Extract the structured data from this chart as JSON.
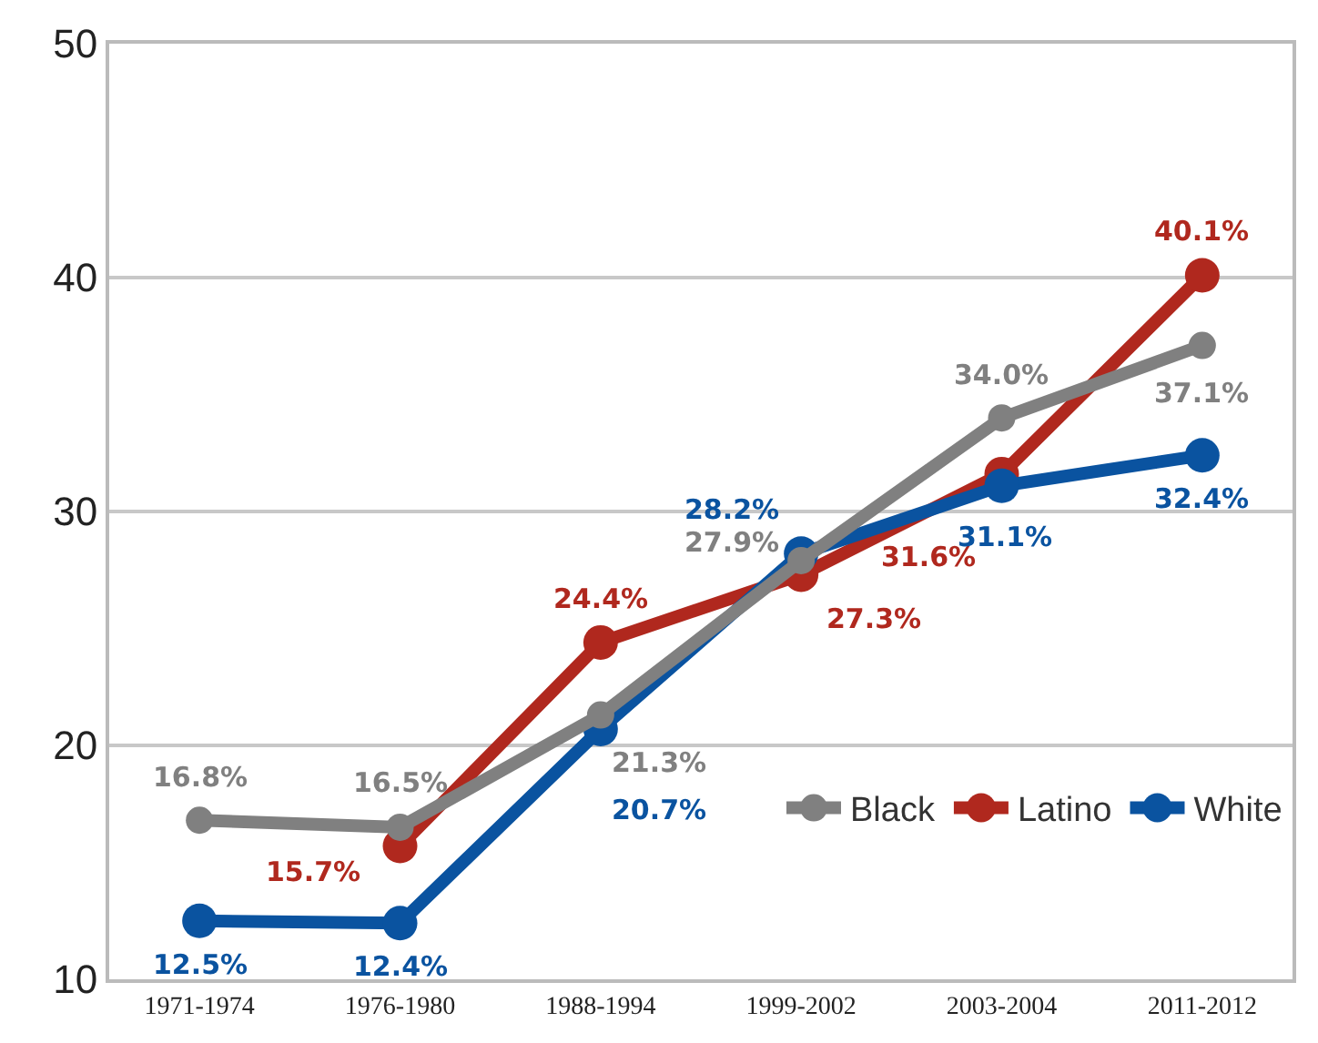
{
  "chart_data": {
    "type": "line",
    "categories": [
      "1971-1974",
      "1976-1980",
      "1988-1994",
      "1999-2002",
      "2003-2004",
      "2011-2012"
    ],
    "series": [
      {
        "name": "Black",
        "color": "#808080",
        "values": [
          16.8,
          16.5,
          21.3,
          27.9,
          34.0,
          37.1
        ],
        "value_labels": [
          "16.8%",
          "16.5%",
          "21.3%",
          "27.9%",
          "34.0%",
          "37.1%"
        ]
      },
      {
        "name": "Latino",
        "color": "#b0281e",
        "values": [
          null,
          15.7,
          24.4,
          27.3,
          31.6,
          40.1
        ],
        "value_labels": [
          null,
          "15.7%",
          "24.4%",
          "27.3%",
          "31.6%",
          "40.1%"
        ]
      },
      {
        "name": "White",
        "color": "#0a53a0",
        "values": [
          12.5,
          12.4,
          20.7,
          28.2,
          31.1,
          32.4
        ],
        "value_labels": [
          "12.5%",
          "12.4%",
          "20.7%",
          "28.2%",
          "31.1%",
          "32.4%"
        ]
      }
    ],
    "ylim": [
      10,
      50
    ],
    "yticks": [
      10,
      20,
      30,
      40,
      50
    ],
    "grid": "y",
    "legend": "bottom right",
    "marker": "circle",
    "line_style": "solid"
  }
}
